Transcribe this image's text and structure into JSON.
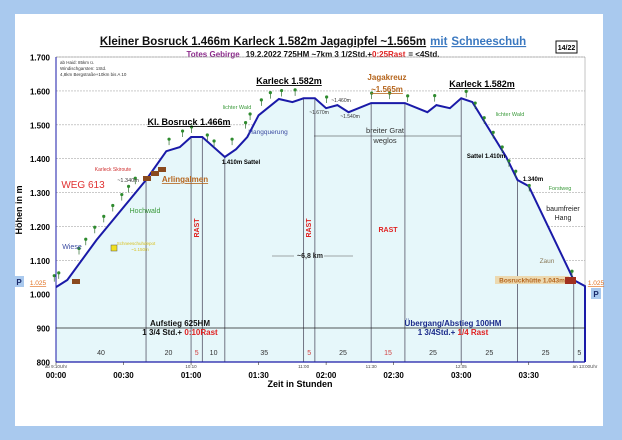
{
  "page_badge": "14/22",
  "title": {
    "part1": "Kleiner Bosruck 1.466m Karleck 1.582m Jagagipfel ~1.565m",
    "part2": "mit",
    "part3": "Schneeschuh"
  },
  "subtitle": {
    "region": "Totes Gebirge",
    "info": "19.2.2022   725HM   ~7km  3 1/2Std.+",
    "rest": "0:25Rast",
    "total": "= <4Std."
  },
  "notes": [
    "ab Haid: 85km ü.",
    "Windischgarsten: 1Std.",
    "4,8km Bergstraße+10km bis A 10"
  ],
  "colors": {
    "profile": "#1a1aa8",
    "fill": "#e6f7fa",
    "rest": "#e02020",
    "border": "#a9c9ee",
    "tree": "#2e8b2e"
  },
  "chart_data": {
    "type": "area",
    "xlabel": "Zeit in Stunden",
    "ylabel": "Höhen in m",
    "ylim": [
      800,
      1700
    ],
    "xlim": [
      "00:00",
      "03:55"
    ],
    "grid": true,
    "yticks": [
      "800",
      "900",
      "1.000",
      "1.100",
      "1.200",
      "1.300",
      "1.400",
      "1.500",
      "1.600",
      "1.700"
    ],
    "xticks": [
      "00:00",
      "00:30",
      "01:00",
      "01:30",
      "02:00",
      "02:30",
      "03:00",
      "03:30"
    ],
    "profile": [
      {
        "x": "00:00",
        "y": 1021
      },
      {
        "x": "00:05",
        "y": 1042
      },
      {
        "x": "00:18",
        "y": 1160
      },
      {
        "x": "00:40",
        "y": 1337
      },
      {
        "x": "00:49",
        "y": 1422
      },
      {
        "x": "00:55",
        "y": 1434
      },
      {
        "x": "01:00",
        "y": 1464
      },
      {
        "x": "01:05",
        "y": 1464
      },
      {
        "x": "01:15",
        "y": 1405
      },
      {
        "x": "01:20",
        "y": 1428
      },
      {
        "x": "01:25",
        "y": 1464
      },
      {
        "x": "01:30",
        "y": 1528
      },
      {
        "x": "01:39",
        "y": 1576
      },
      {
        "x": "01:45",
        "y": 1567
      },
      {
        "x": "01:50",
        "y": 1578
      },
      {
        "x": "01:55",
        "y": 1578
      },
      {
        "x": "02:00",
        "y": 1549
      },
      {
        "x": "02:05",
        "y": 1558
      },
      {
        "x": "02:10",
        "y": 1537
      },
      {
        "x": "02:20",
        "y": 1564
      },
      {
        "x": "02:35",
        "y": 1564
      },
      {
        "x": "02:45",
        "y": 1537
      },
      {
        "x": "02:49",
        "y": 1558
      },
      {
        "x": "02:55",
        "y": 1549
      },
      {
        "x": "03:00",
        "y": 1578
      },
      {
        "x": "03:05",
        "y": 1567
      },
      {
        "x": "03:20",
        "y": 1405
      },
      {
        "x": "03:25",
        "y": 1337
      },
      {
        "x": "03:30",
        "y": 1319
      },
      {
        "x": "03:50",
        "y": 1042
      },
      {
        "x": "03:55",
        "y": 1024
      }
    ],
    "segments": [
      {
        "minutes": "40",
        "rest": false
      },
      {
        "minutes": "20",
        "rest": false
      },
      {
        "minutes": "5",
        "rest": true
      },
      {
        "minutes": "10",
        "rest": false
      },
      {
        "minutes": "35",
        "rest": false
      },
      {
        "minutes": "5",
        "rest": true
      },
      {
        "minutes": "25",
        "rest": false
      },
      {
        "minutes": "15",
        "rest": true
      },
      {
        "minutes": "25",
        "rest": false
      },
      {
        "minutes": "25",
        "rest": false
      },
      {
        "minutes": "25",
        "rest": false
      },
      {
        "minutes": "5",
        "rest": false
      }
    ],
    "clock_marks": [
      {
        "at": "00:00",
        "label": "ab 9:10Uhr"
      },
      {
        "at": "01:00",
        "label": "10:10"
      },
      {
        "at": "01:50",
        "label": "11:00"
      },
      {
        "at": "02:20",
        "label": "11:30"
      },
      {
        "at": "03:00",
        "label": "12:05"
      },
      {
        "at": "03:55",
        "label": "an 13:00Uhr"
      }
    ]
  },
  "annotations": {
    "karleck1": "Karleck 1.582m",
    "bosruck": "Kl. Bosruck 1.466m",
    "jagakreuz": "Jagakreuz",
    "jagakreuz_elev": "~1.565m",
    "karleck2": "Karleck 1.582m",
    "lichter_wald1": "lichter Wald",
    "lichter_wald2": "lichter Wald",
    "hangquerung": "Hangquerung",
    "sattel1": "1.410m Sattel",
    "e1670": "~1.670m",
    "e1460": "~1.460m",
    "e1540": "~1.540m",
    "grat1": "breiter Grat",
    "grat2": "weglos",
    "sattel2": "Sattel 1.410m",
    "e1340r": "1.340m",
    "forstweg": "Forstweg",
    "baumfrei1": "baumfreier",
    "baumfrei2": "Hang",
    "zaun": "Zaun",
    "huette": "Bosruckhütte 1.043m",
    "start_elev": "1.025",
    "end_elev": "1.025",
    "parking": "P",
    "skiroute": "Karleck Skiroute",
    "e1340l": "~1.340m",
    "arlingalmen": "Arlingalmen",
    "weg": "WEG 613",
    "hochwald": "Hochwald",
    "wiese": "Wiese",
    "depot": "Schneeschuhdepot",
    "depot_elev": "~1.150m",
    "rast": "RAST",
    "distance": "~6,8 km",
    "aufstieg": "Aufstieg 625HM",
    "aufstieg_time": "1 3/4 Std.+ ",
    "aufstieg_rest": "0:10Rast",
    "uebergang": "Übergang/Abstieg 100HM",
    "uebergang_time": "1 3/4Std.+ ",
    "uebergang_rest": "1/4 Rast"
  }
}
